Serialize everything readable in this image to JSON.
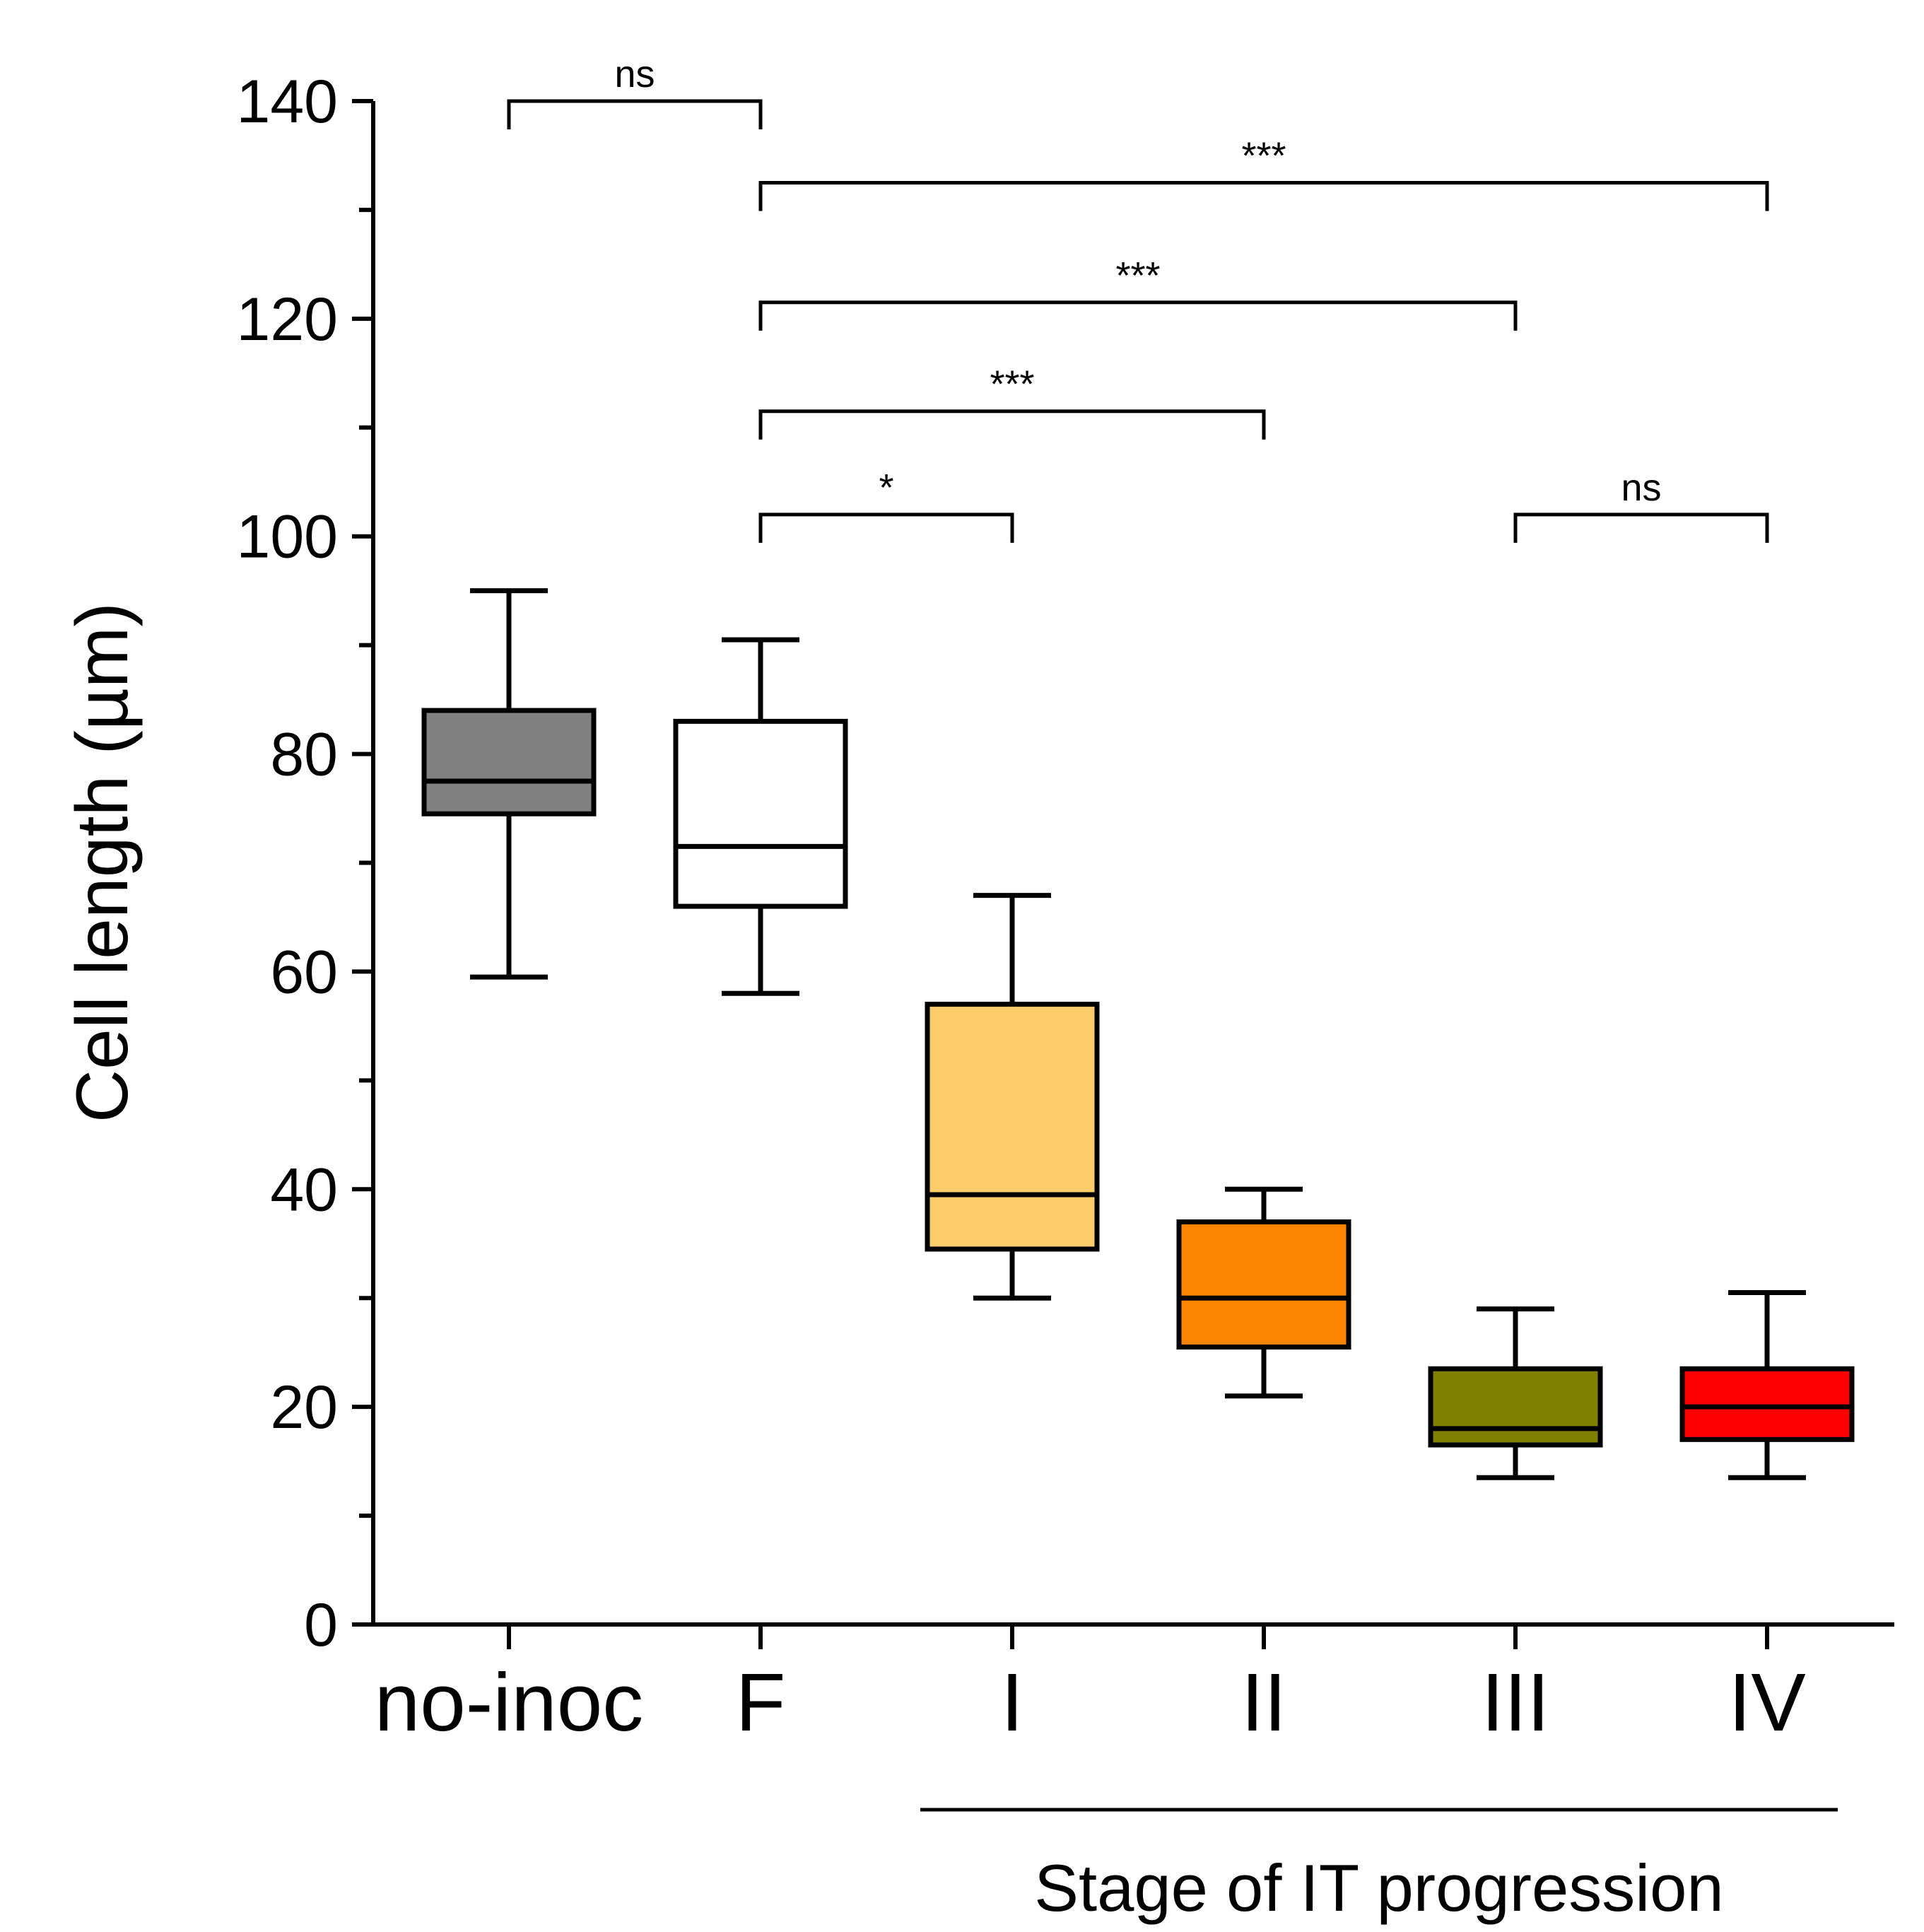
{
  "chart_data": {
    "type": "box",
    "ylabel": "Cell length (µm)",
    "ylim": [
      0,
      140
    ],
    "yticks": [
      0,
      20,
      40,
      60,
      80,
      100,
      120,
      140
    ],
    "categories": [
      "no-inoc",
      "F",
      "I",
      "II",
      "III",
      "IV"
    ],
    "boxes": [
      {
        "category": "no-inoc",
        "min": 59.5,
        "q1": 74.5,
        "median": 77.5,
        "q3": 84,
        "max": 95,
        "color": "#808080"
      },
      {
        "category": "F",
        "min": 58,
        "q1": 66,
        "median": 71.5,
        "q3": 83,
        "max": 90.5,
        "color": "#ffffff"
      },
      {
        "category": "I",
        "min": 30,
        "q1": 34.5,
        "median": 39.5,
        "q3": 57,
        "max": 67,
        "color": "#fccb6a"
      },
      {
        "category": "II",
        "min": 21,
        "q1": 25.5,
        "median": 30,
        "q3": 37,
        "max": 40,
        "color": "#fb8500"
      },
      {
        "category": "III",
        "min": 13.5,
        "q1": 16.5,
        "median": 18,
        "q3": 23.5,
        "max": 29,
        "color": "#808000"
      },
      {
        "category": "IV",
        "min": 13.5,
        "q1": 17,
        "median": 20,
        "q3": 23.5,
        "max": 30.5,
        "color": "#ff0000"
      }
    ],
    "comparisons": [
      {
        "from": "no-inoc",
        "to": "F",
        "y": 140,
        "label": "ns"
      },
      {
        "from": "F",
        "to": "IV",
        "y": 132.5,
        "label": "***"
      },
      {
        "from": "F",
        "to": "III",
        "y": 121.5,
        "label": "***"
      },
      {
        "from": "F",
        "to": "II",
        "y": 111.5,
        "label": "***"
      },
      {
        "from": "F",
        "to": "I",
        "y": 102,
        "label": "*"
      },
      {
        "from": "III",
        "to": "IV",
        "y": 102,
        "label": "ns"
      }
    ],
    "group": {
      "label": "Stage of IT progression",
      "from": "I",
      "to": "IV"
    }
  }
}
